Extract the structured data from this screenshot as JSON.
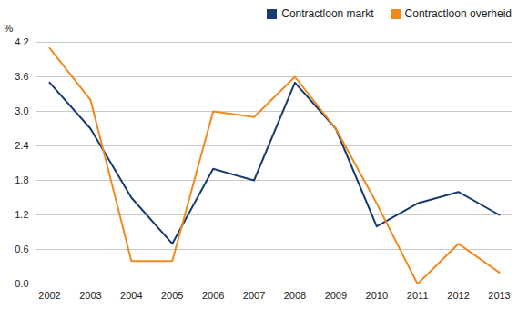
{
  "chart_data": {
    "type": "line",
    "x": [
      2002,
      2003,
      2004,
      2005,
      2006,
      2007,
      2008,
      2009,
      2010,
      2011,
      2012,
      2013
    ],
    "series": [
      {
        "name": "Contractloon markt",
        "color": "#163c6e",
        "values": [
          3.5,
          2.7,
          1.5,
          0.7,
          2.0,
          1.8,
          3.5,
          2.7,
          1.0,
          1.4,
          1.6,
          1.2
        ]
      },
      {
        "name": "Contractloon overheid",
        "color": "#f08a1c",
        "values": [
          4.1,
          3.2,
          0.4,
          0.4,
          3.0,
          2.9,
          3.6,
          2.7,
          1.4,
          0.0,
          0.7,
          0.2
        ]
      }
    ],
    "y_label": "%",
    "xlim": [
      2002,
      2013
    ],
    "xticks": [
      2002,
      2003,
      2004,
      2005,
      2006,
      2007,
      2008,
      2009,
      2010,
      2011,
      2012,
      2013
    ],
    "ylim": [
      0,
      4.2
    ],
    "yticks": [
      {
        "value": 0,
        "label": "0.0"
      },
      0.6,
      1.2,
      1.8,
      2.4,
      {
        "value": 3,
        "label": "3.0"
      },
      3.6,
      4.2
    ],
    "grid": true,
    "legend": "top-right"
  }
}
